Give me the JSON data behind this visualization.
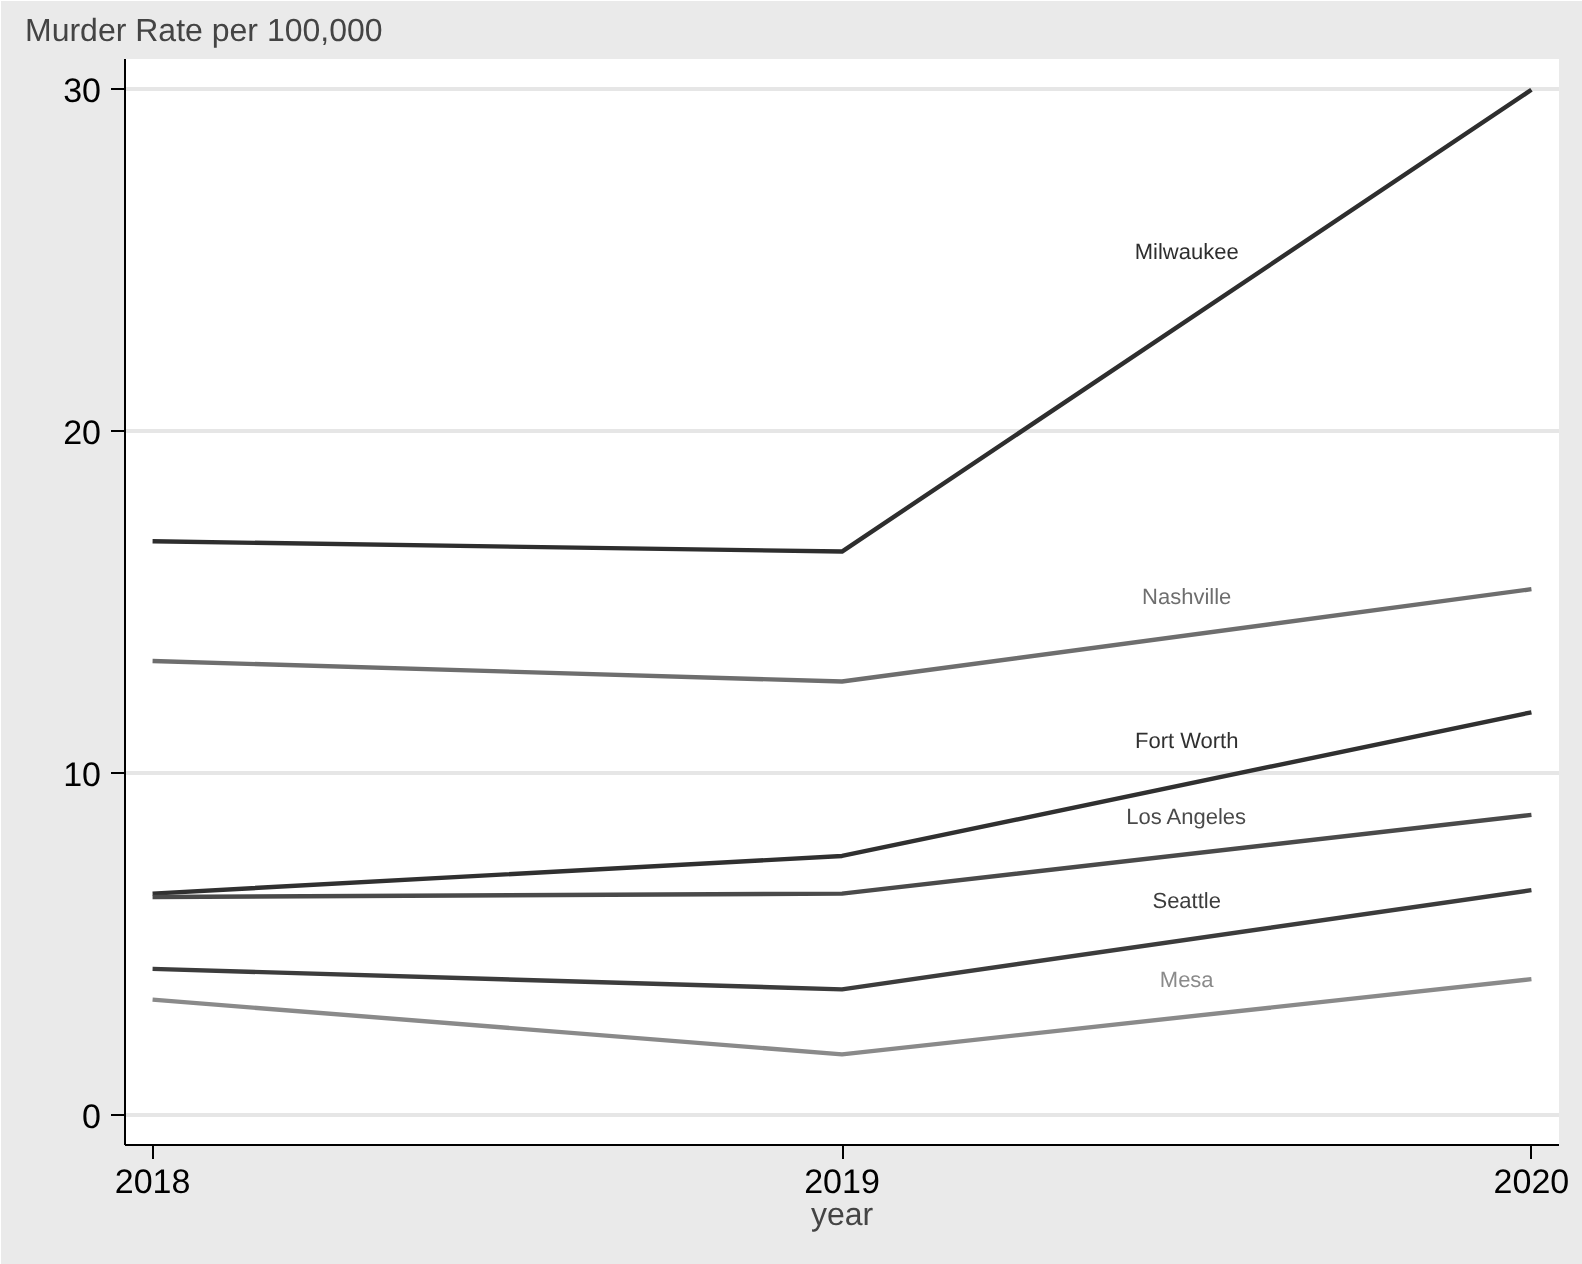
{
  "chart_data": {
    "type": "line",
    "ylabel": "Murder Rate per 100,000",
    "xlabel": "year",
    "x": [
      2018,
      2019,
      2020
    ],
    "xlim": [
      2017.96,
      2020.04
    ],
    "xticks": [
      2018,
      2019,
      2020
    ],
    "ylim": [
      -0.85,
      30.9
    ],
    "yticks": [
      0,
      10,
      20,
      30
    ],
    "grid": "y",
    "legend": false,
    "marker": "none",
    "line_style": "solid",
    "series": [
      {
        "name": "Milwaukee",
        "color": "#2e2e2e",
        "values": [
          16.8,
          16.5,
          30
        ]
      },
      {
        "name": "Nashville",
        "color": "#6e6e6e",
        "values": [
          13.3,
          12.7,
          15.4
        ]
      },
      {
        "name": "Fort Worth",
        "color": "#303030",
        "values": [
          6.5,
          7.6,
          11.8
        ]
      },
      {
        "name": "Los Angeles",
        "color": "#4a4a4a",
        "values": [
          6.4,
          6.5,
          8.8
        ]
      },
      {
        "name": "Seattle",
        "color": "#3c3c3c",
        "values": [
          4.3,
          3.7,
          6.6
        ]
      },
      {
        "name": "Mesa",
        "color": "#8a8a8a",
        "values": [
          3.4,
          1.8,
          4.0
        ]
      }
    ]
  }
}
